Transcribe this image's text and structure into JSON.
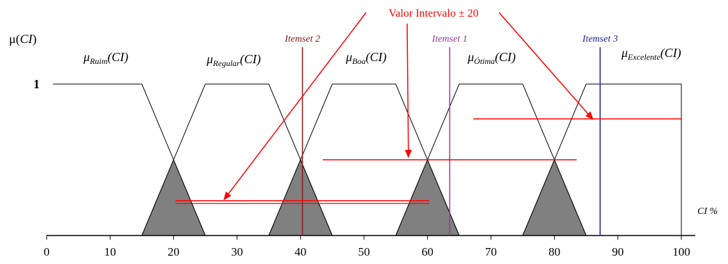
{
  "chart_data": {
    "type": "line",
    "xlabel": "CI %",
    "ylabel_main": "μ(",
    "ylabel_arg": "CI",
    "ylabel_close": ")",
    "xlim": [
      0,
      100
    ],
    "ylim": [
      0,
      1
    ],
    "x_ticks": [
      0,
      10,
      20,
      30,
      40,
      50,
      60,
      70,
      80,
      90,
      100
    ],
    "x_tick_labels": [
      "0",
      "10",
      "20",
      "30",
      "40",
      "50",
      "60",
      "70",
      "80",
      "90",
      "100"
    ],
    "y_tick_label": "1",
    "series": [
      {
        "name": "Ruim",
        "label_sub": "Ruim",
        "x": [
          1,
          15,
          25
        ],
        "y": [
          1,
          1,
          0
        ]
      },
      {
        "name": "Regular",
        "label_sub": "Regular",
        "x": [
          15,
          25,
          35,
          45
        ],
        "y": [
          0,
          1,
          1,
          0
        ]
      },
      {
        "name": "Boa",
        "label_sub": "Boa",
        "x": [
          35,
          45,
          55,
          65
        ],
        "y": [
          0,
          1,
          1,
          0
        ]
      },
      {
        "name": "Ótima",
        "label_sub": "Ótima",
        "x": [
          55,
          65,
          75,
          85
        ],
        "y": [
          0,
          1,
          1,
          0
        ]
      },
      {
        "name": "Excelente",
        "label_sub": "Excelente",
        "x": [
          75,
          85,
          100
        ],
        "y": [
          0,
          1,
          1
        ]
      }
    ],
    "membership_prefix": "μ",
    "membership_arg": "(CI)",
    "shaded_regions": [
      {
        "x": [
          15,
          20,
          25
        ],
        "y": [
          0,
          0.5,
          0
        ]
      },
      {
        "x": [
          35,
          40,
          45
        ],
        "y": [
          0,
          0.5,
          0
        ]
      },
      {
        "x": [
          55,
          60,
          65
        ],
        "y": [
          0,
          0.5,
          0
        ]
      },
      {
        "x": [
          75,
          80,
          85
        ],
        "y": [
          0,
          0.5,
          0
        ]
      }
    ],
    "itemsets": [
      {
        "label": "Itemset 2",
        "x": 40.3,
        "color": "#8b1a1a"
      },
      {
        "label": "Itemset 1",
        "x": 63.5,
        "color": "#9b3a9b"
      },
      {
        "label": "Itemset 3",
        "x": 87.2,
        "color": "#2020a0"
      }
    ],
    "intervals": [
      {
        "x": [
          20.3,
          60.3
        ],
        "y": 0.23
      },
      {
        "x": [
          43.5,
          83.5
        ],
        "y": 0.5
      },
      {
        "x": [
          67.2,
          100
        ],
        "y": 0.77
      }
    ],
    "annotation": {
      "text": "Valor Intervalo ± 20",
      "color": "#ff0000",
      "arrow_targets": [
        {
          "x": 28,
          "y": 0.24
        },
        {
          "x": 57,
          "y": 0.52
        },
        {
          "x": 86,
          "y": 0.77
        }
      ]
    },
    "colors": {
      "curve": "#000000",
      "shade": "#808080",
      "interval": "#ff0000"
    }
  }
}
